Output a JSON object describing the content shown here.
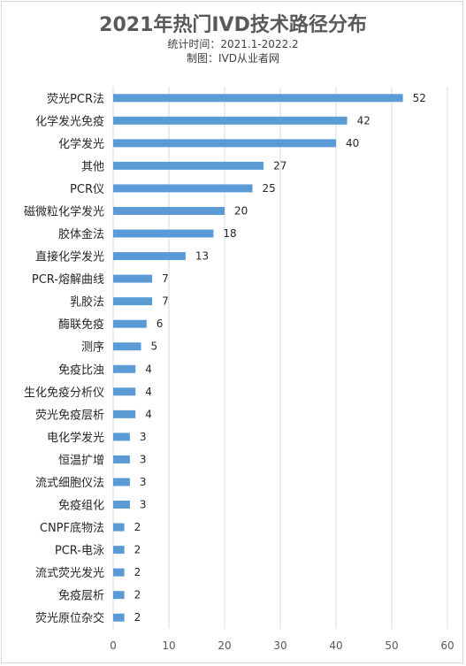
{
  "chart_data": {
    "type": "bar",
    "orientation": "horizontal",
    "title": "2021年热门IVD技术路径分布",
    "subtitles": [
      "统计时间：2021.1-2022.2",
      "制图：IVD从业者网"
    ],
    "categories": [
      "荧光PCR法",
      "化学发光免疫",
      "化学发光",
      "其他",
      "PCR仪",
      "磁微粒化学发光",
      "胶体金法",
      "直接化学发光",
      "PCR-熔解曲线",
      "乳胶法",
      "酶联免疫",
      "测序",
      "免疫比浊",
      "生化免疫分析仪",
      "荧光免疫层析",
      "电化学发光",
      "恒温扩增",
      "流式细胞仪法",
      "免疫组化",
      "CNPF底物法",
      "PCR-电泳",
      "流式荧光发光",
      "免疫层析",
      "荧光原位杂交"
    ],
    "values": [
      52,
      42,
      40,
      27,
      25,
      20,
      18,
      13,
      7,
      7,
      6,
      5,
      4,
      4,
      4,
      3,
      3,
      3,
      3,
      2,
      2,
      2,
      2,
      2
    ],
    "xlim": [
      0,
      60
    ],
    "xticks": [
      "0",
      "10",
      "20",
      "30",
      "40",
      "50",
      "60"
    ],
    "grid": true,
    "bar_color": "#5b9bd5"
  }
}
